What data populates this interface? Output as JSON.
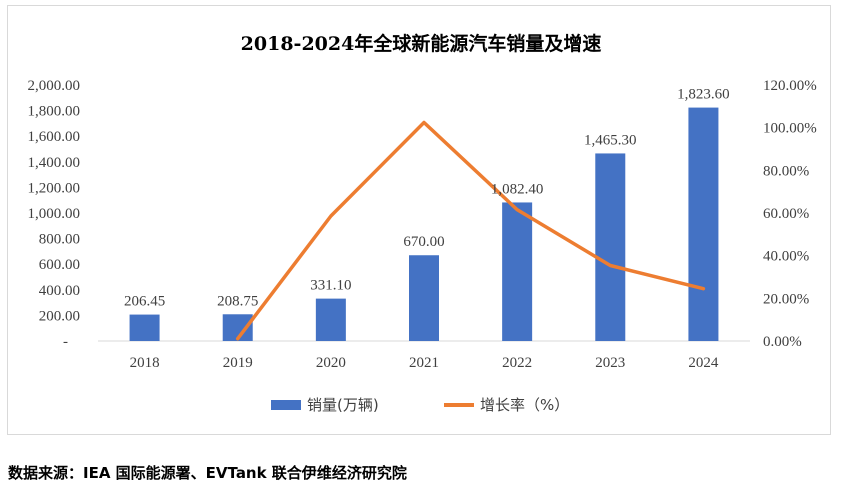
{
  "chart_data": {
    "type": "bar",
    "title": "2018-2024年全球新能源汽车销量及增速",
    "categories": [
      "2018",
      "2019",
      "2020",
      "2021",
      "2022",
      "2023",
      "2024"
    ],
    "series": [
      {
        "name": "销量(万辆)",
        "kind": "bar",
        "axis": "left",
        "values": [
          206.45,
          208.75,
          331.1,
          670.0,
          1082.4,
          1465.3,
          1823.6
        ],
        "labels": [
          "206.45",
          "208.75",
          "331.10",
          "670.00",
          "1,082.40",
          "1,465.30",
          "1,823.60"
        ],
        "color": "#4472C4"
      },
      {
        "name": "增长率（%）",
        "kind": "line",
        "axis": "right",
        "values": [
          null,
          1.1,
          58.6,
          102.4,
          61.6,
          35.4,
          24.5
        ],
        "color": "#ED7D31"
      }
    ],
    "y_left": {
      "ylim": [
        0,
        2000
      ],
      "ticks": [
        0,
        200,
        400,
        600,
        800,
        1000,
        1200,
        1400,
        1600,
        1800,
        2000
      ],
      "tick_labels": [
        "-",
        "200.00",
        "400.00",
        "600.00",
        "800.00",
        "1,000.00",
        "1,200.00",
        "1,400.00",
        "1,600.00",
        "1,800.00",
        "2,000.00"
      ]
    },
    "y_right": {
      "ylim": [
        0,
        120
      ],
      "ticks": [
        0,
        20,
        40,
        60,
        80,
        100,
        120
      ],
      "tick_labels": [
        "0.00%",
        "20.00%",
        "40.00%",
        "60.00%",
        "80.00%",
        "100.00%",
        "120.00%"
      ]
    },
    "legend_position": "bottom"
  },
  "source_text": "数据来源：IEA 国际能源署、EVTank 联合伊维经济研究院"
}
